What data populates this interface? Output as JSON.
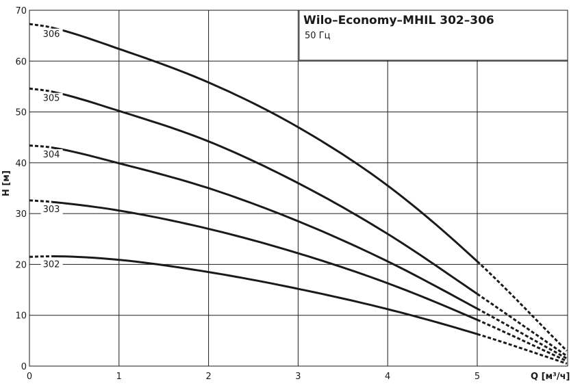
{
  "chart_data": {
    "type": "line",
    "title": "Wilo–Economy–MHIL 302–306",
    "subtitle": "50 Гц",
    "xlabel": "Q [м³/ч]",
    "ylabel": "H [м]",
    "xlim": [
      0,
      6
    ],
    "ylim": [
      0,
      70
    ],
    "x_ticks": [
      "0",
      "1",
      "2",
      "3",
      "4",
      "5"
    ],
    "y_ticks": [
      "0",
      "10",
      "20",
      "30",
      "40",
      "50",
      "60",
      "70"
    ],
    "grid": true,
    "operating_range": [
      0.25,
      5.0
    ],
    "series": [
      {
        "name": "302",
        "x": [
          0,
          0.25,
          1,
          2,
          3,
          4,
          5,
          6
        ],
        "y": [
          21.5,
          21.6,
          20.9,
          18.5,
          15.2,
          11.2,
          6.3,
          0.5
        ]
      },
      {
        "name": "303",
        "x": [
          0,
          0.25,
          1,
          2,
          3,
          4,
          5,
          6
        ],
        "y": [
          32.6,
          32.3,
          30.6,
          27.0,
          22.2,
          16.3,
          9.1,
          1.0
        ]
      },
      {
        "name": "304",
        "x": [
          0,
          0.25,
          1,
          2,
          3,
          4,
          5,
          6
        ],
        "y": [
          43.4,
          43.0,
          39.9,
          35.0,
          28.5,
          20.6,
          11.3,
          1.5
        ]
      },
      {
        "name": "305",
        "x": [
          0,
          0.25,
          1,
          2,
          3,
          4,
          5,
          6
        ],
        "y": [
          54.6,
          54.0,
          50.2,
          44.2,
          36.0,
          26.0,
          14.2,
          2.0
        ]
      },
      {
        "name": "306",
        "x": [
          0,
          0.25,
          1,
          2,
          3,
          4,
          5,
          6
        ],
        "y": [
          67.3,
          66.6,
          62.4,
          55.8,
          47.0,
          35.5,
          20.6,
          3.0
        ]
      }
    ]
  }
}
